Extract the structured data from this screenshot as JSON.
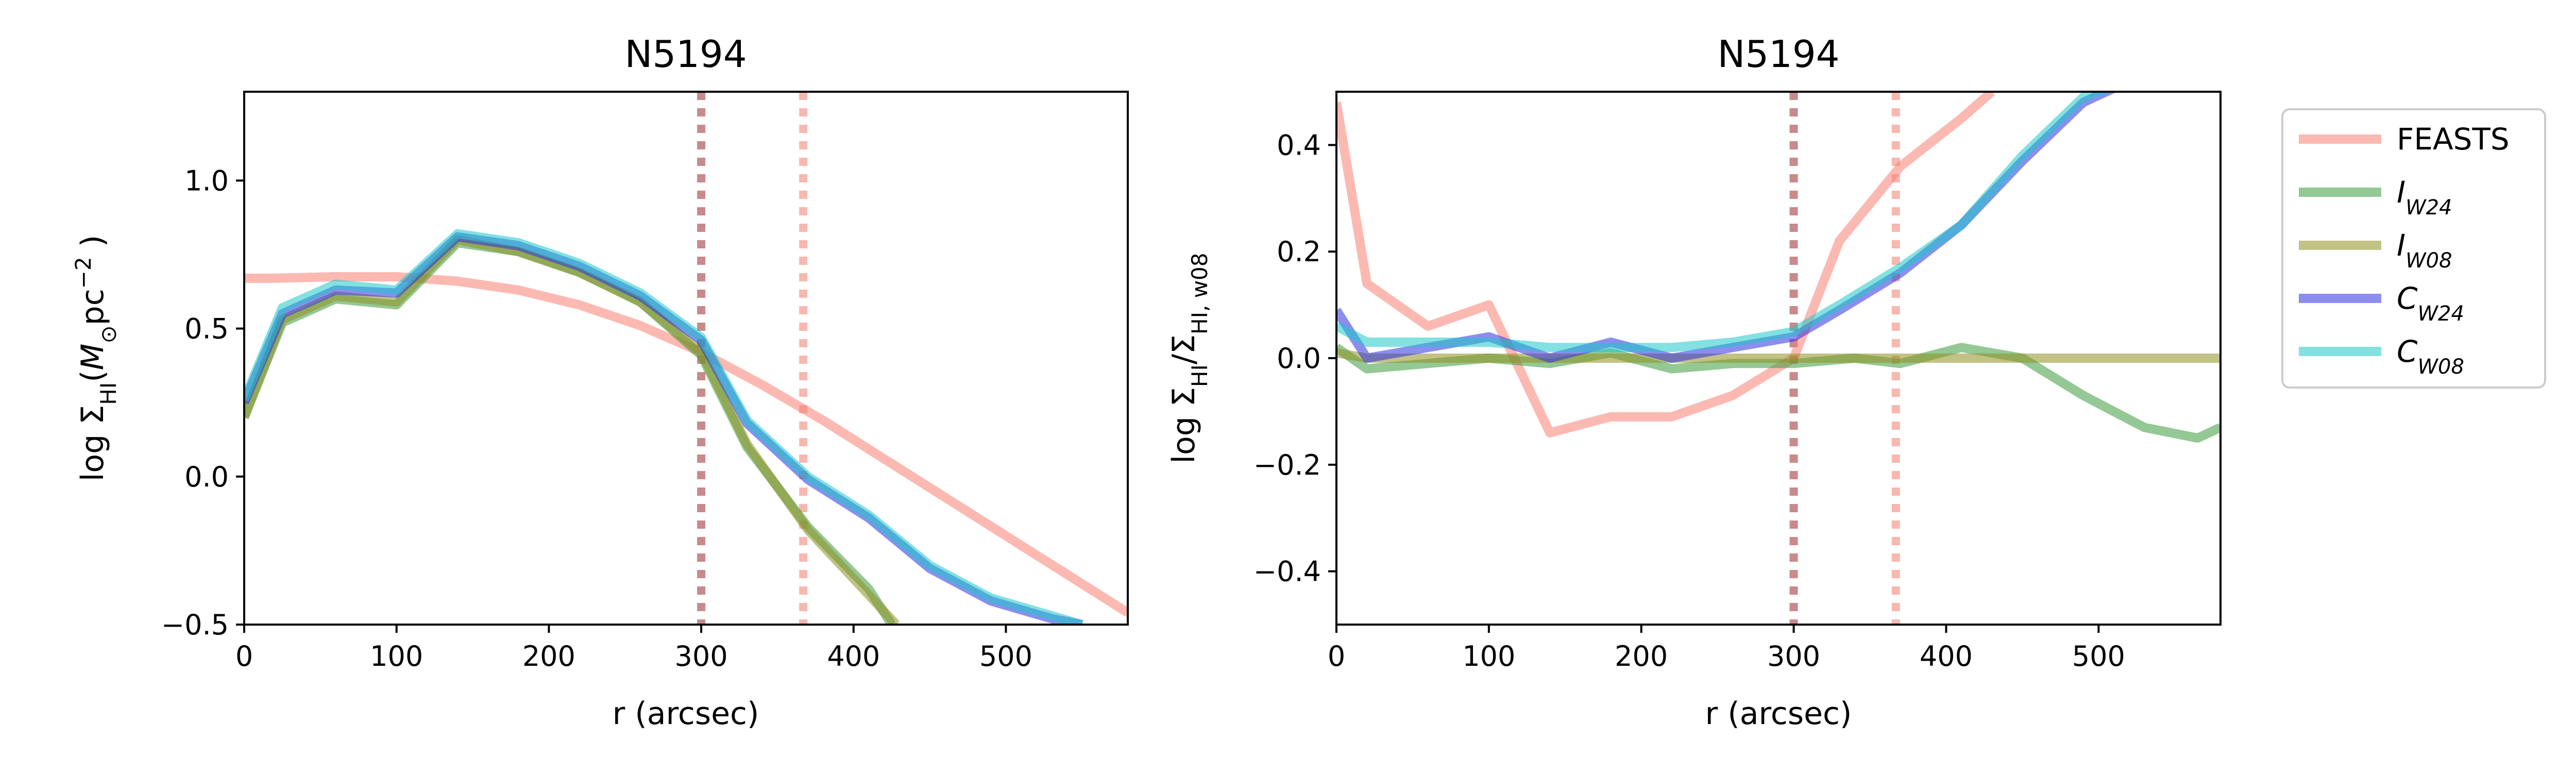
{
  "chart_data": [
    {
      "type": "line",
      "title": "N5194",
      "xlabel": "r (arcsec)",
      "ylabel": "log Σ_HI(M_⊙pc^−2 )",
      "xlim": [
        0,
        580
      ],
      "ylim": [
        -0.5,
        1.3
      ],
      "xticks": [
        0,
        100,
        200,
        300,
        400,
        500
      ],
      "yticks": [
        -0.5,
        0.0,
        0.5,
        1.0
      ],
      "vlines": [
        {
          "x": 300,
          "color": "#c88a8a"
        },
        {
          "x": 367,
          "color": "#f6b8b0"
        }
      ],
      "series": [
        {
          "name": "FEASTS",
          "color": "#fa8072",
          "x": [
            0,
            20,
            60,
            100,
            140,
            180,
            220,
            260,
            300,
            340,
            380,
            420,
            460,
            500,
            540,
            580
          ],
          "y": [
            0.67,
            0.67,
            0.675,
            0.675,
            0.66,
            0.63,
            0.58,
            0.51,
            0.42,
            0.31,
            0.19,
            0.06,
            -0.07,
            -0.2,
            -0.33,
            -0.46
          ]
        },
        {
          "name": "I_W24",
          "color": "#3d9a3d",
          "x": [
            0,
            25,
            60,
            100,
            140,
            180,
            220,
            260,
            300,
            330,
            370,
            410,
            425
          ],
          "y": [
            0.2,
            0.52,
            0.6,
            0.58,
            0.79,
            0.76,
            0.69,
            0.59,
            0.41,
            0.1,
            -0.17,
            -0.38,
            -0.5
          ]
        },
        {
          "name": "I_W08",
          "color": "#8f8f20",
          "x": [
            0,
            25,
            60,
            100,
            140,
            180,
            220,
            260,
            300,
            330,
            370,
            410,
            428
          ],
          "y": [
            0.2,
            0.53,
            0.61,
            0.59,
            0.8,
            0.76,
            0.69,
            0.59,
            0.42,
            0.11,
            -0.18,
            -0.4,
            -0.5
          ]
        },
        {
          "name": "C_W24",
          "color": "#3030e0",
          "x": [
            0,
            25,
            60,
            100,
            140,
            180,
            220,
            260,
            300,
            330,
            370,
            410,
            450,
            490,
            530,
            550
          ],
          "y": [
            0.25,
            0.55,
            0.63,
            0.62,
            0.81,
            0.78,
            0.71,
            0.61,
            0.46,
            0.18,
            -0.01,
            -0.14,
            -0.31,
            -0.42,
            -0.48,
            -0.5
          ]
        },
        {
          "name": "C_W08",
          "color": "#1ec8c8",
          "x": [
            0,
            25,
            60,
            100,
            140,
            180,
            220,
            260,
            300,
            330,
            370,
            410,
            450,
            490,
            530,
            550
          ],
          "y": [
            0.26,
            0.57,
            0.65,
            0.63,
            0.82,
            0.79,
            0.72,
            0.62,
            0.47,
            0.19,
            0.0,
            -0.13,
            -0.3,
            -0.41,
            -0.47,
            -0.5
          ]
        }
      ]
    },
    {
      "type": "line",
      "title": "N5194",
      "xlabel": "r (arcsec)",
      "ylabel": "log Σ_HI/Σ_HI, w08",
      "xlim": [
        0,
        580
      ],
      "ylim": [
        -0.5,
        0.5
      ],
      "xticks": [
        0,
        100,
        200,
        300,
        400,
        500
      ],
      "yticks": [
        -0.4,
        -0.2,
        0.0,
        0.2,
        0.4
      ],
      "vlines": [
        {
          "x": 300,
          "color": "#c88a8a"
        },
        {
          "x": 367,
          "color": "#f6b8b0"
        }
      ],
      "series": [
        {
          "name": "FEASTS",
          "color": "#fa8072",
          "x": [
            0,
            20,
            60,
            100,
            140,
            180,
            220,
            260,
            300,
            330,
            370,
            410,
            430
          ],
          "y": [
            0.48,
            0.14,
            0.06,
            0.1,
            -0.14,
            -0.11,
            -0.11,
            -0.07,
            0.0,
            0.22,
            0.36,
            0.45,
            0.5
          ]
        },
        {
          "name": "I_W24",
          "color": "#3d9a3d",
          "x": [
            0,
            20,
            60,
            100,
            140,
            180,
            220,
            260,
            300,
            340,
            370,
            410,
            450,
            490,
            530,
            565,
            580
          ],
          "y": [
            0.02,
            -0.02,
            -0.01,
            0.0,
            -0.01,
            0.01,
            -0.02,
            -0.01,
            -0.01,
            0.0,
            -0.01,
            0.02,
            0.0,
            -0.07,
            -0.13,
            -0.15,
            -0.13
          ]
        },
        {
          "name": "I_W08",
          "color": "#8f8f20",
          "x": [
            0,
            20,
            60,
            100,
            140,
            180,
            220,
            260,
            300,
            340,
            380,
            420,
            460,
            500,
            540,
            580
          ],
          "y": [
            0.01,
            0.0,
            0.0,
            0.0,
            0.0,
            0.0,
            0.0,
            0.0,
            0.0,
            0.0,
            0.0,
            0.0,
            0.0,
            0.0,
            0.0,
            0.0
          ]
        },
        {
          "name": "C_W24",
          "color": "#3030e0",
          "x": [
            0,
            20,
            60,
            100,
            140,
            180,
            220,
            260,
            300,
            330,
            370,
            410,
            450,
            490,
            520
          ],
          "y": [
            0.09,
            0.0,
            0.02,
            0.04,
            0.0,
            0.03,
            0.0,
            0.02,
            0.04,
            0.09,
            0.16,
            0.25,
            0.37,
            0.48,
            0.52
          ]
        },
        {
          "name": "C_W08",
          "color": "#1ec8c8",
          "x": [
            0,
            20,
            60,
            100,
            140,
            180,
            220,
            260,
            300,
            330,
            370,
            410,
            450,
            490,
            520
          ],
          "y": [
            0.06,
            0.03,
            0.03,
            0.03,
            0.02,
            0.02,
            0.02,
            0.03,
            0.05,
            0.1,
            0.17,
            0.25,
            0.38,
            0.49,
            0.52
          ]
        }
      ]
    }
  ],
  "legend": {
    "placement": "right, outside",
    "entries": [
      {
        "label": "FEASTS",
        "base": "FEASTS",
        "sub": "",
        "color": "#fa8072"
      },
      {
        "label": "I_W24",
        "base": "I",
        "sub": "W24",
        "color": "#3d9a3d"
      },
      {
        "label": "I_W08",
        "base": "I",
        "sub": "W08",
        "color": "#8f8f20"
      },
      {
        "label": "C_W24",
        "base": "C",
        "sub": "W24",
        "color": "#3030e0"
      },
      {
        "label": "C_W08",
        "base": "C",
        "sub": "W08",
        "color": "#1ec8c8"
      }
    ]
  }
}
